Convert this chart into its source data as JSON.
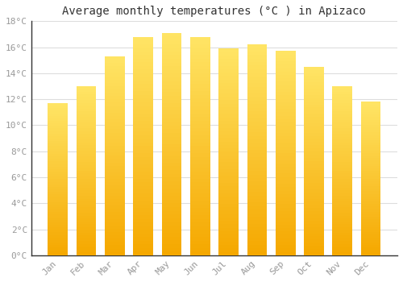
{
  "title": "Average monthly temperatures (°C ) in Apizaco",
  "months": [
    "Jan",
    "Feb",
    "Mar",
    "Apr",
    "May",
    "Jun",
    "Jul",
    "Aug",
    "Sep",
    "Oct",
    "Nov",
    "Dec"
  ],
  "values": [
    11.7,
    13.0,
    15.3,
    16.8,
    17.1,
    16.8,
    15.9,
    16.2,
    15.7,
    14.5,
    13.0,
    11.8
  ],
  "bar_color_bottom": "#F5A800",
  "bar_color_top": "#FFE566",
  "ylim": [
    0,
    18
  ],
  "yticks": [
    0,
    2,
    4,
    6,
    8,
    10,
    12,
    14,
    16,
    18
  ],
  "background_color": "#ffffff",
  "grid_color": "#dddddd",
  "title_fontsize": 10,
  "tick_fontsize": 8,
  "tick_color": "#999999",
  "font_family": "monospace",
  "bar_width": 0.7
}
